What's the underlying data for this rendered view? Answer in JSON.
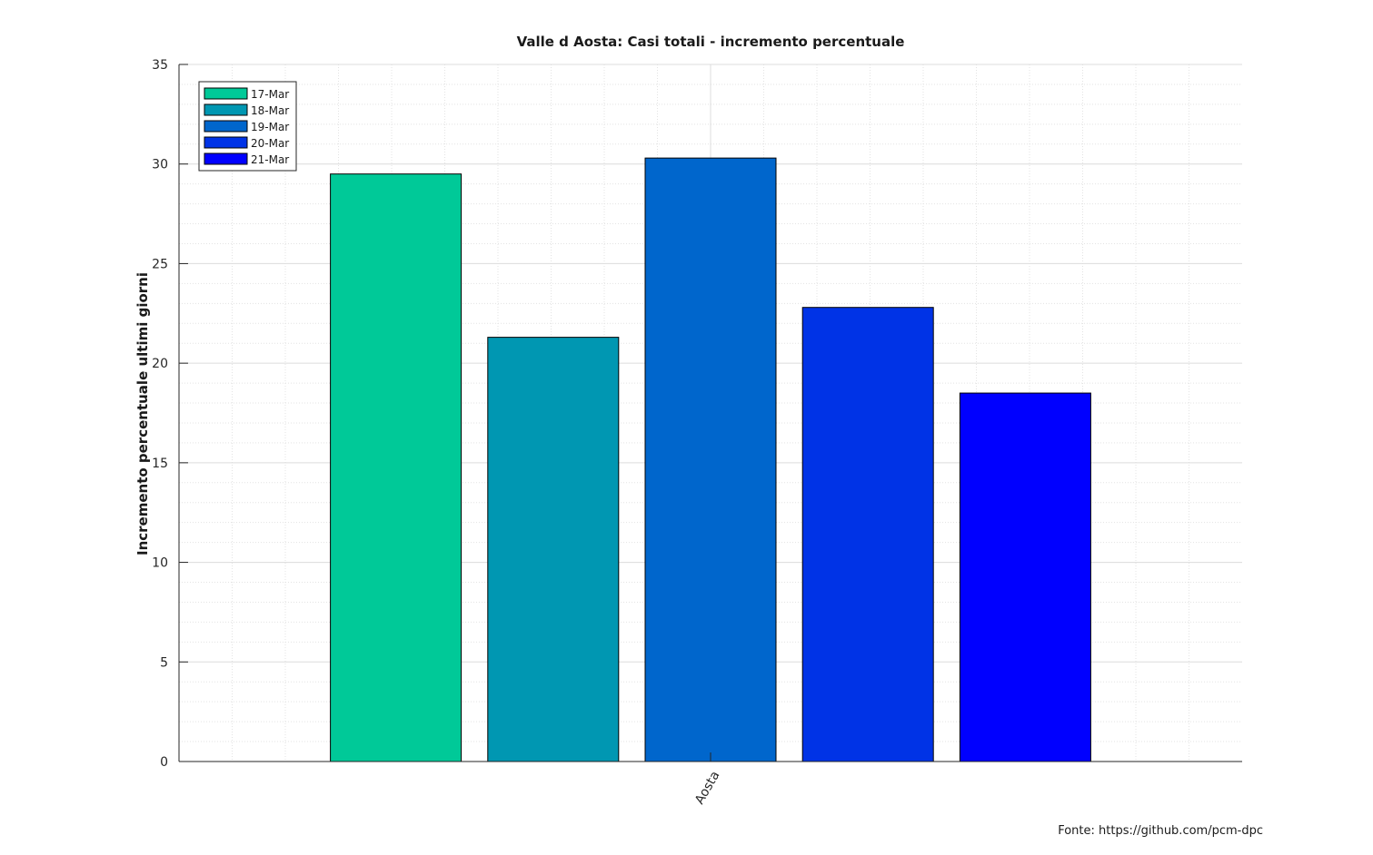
{
  "chart_data": {
    "type": "bar",
    "title": "Valle d Aosta: Casi totali - incremento percentuale",
    "xlabel": "",
    "ylabel": "Incremento percentuale ultimi giorni",
    "categories": [
      "Aosta"
    ],
    "series": [
      {
        "name": "17-Mar",
        "values": [
          29.5
        ],
        "color": "#00c998"
      },
      {
        "name": "18-Mar",
        "values": [
          21.3
        ],
        "color": "#0097b2"
      },
      {
        "name": "19-Mar",
        "values": [
          30.3
        ],
        "color": "#0066cc"
      },
      {
        "name": "20-Mar",
        "values": [
          22.8
        ],
        "color": "#0033e6"
      },
      {
        "name": "21-Mar",
        "values": [
          18.5
        ],
        "color": "#0000ff"
      }
    ],
    "ylim": [
      0,
      35
    ],
    "yticks": [
      0,
      5,
      10,
      15,
      20,
      25,
      30,
      35
    ],
    "grid": true,
    "minor_grid": true,
    "legend_position": "top-left"
  },
  "source_note": "Fonte: https://github.com/pcm-dpc"
}
